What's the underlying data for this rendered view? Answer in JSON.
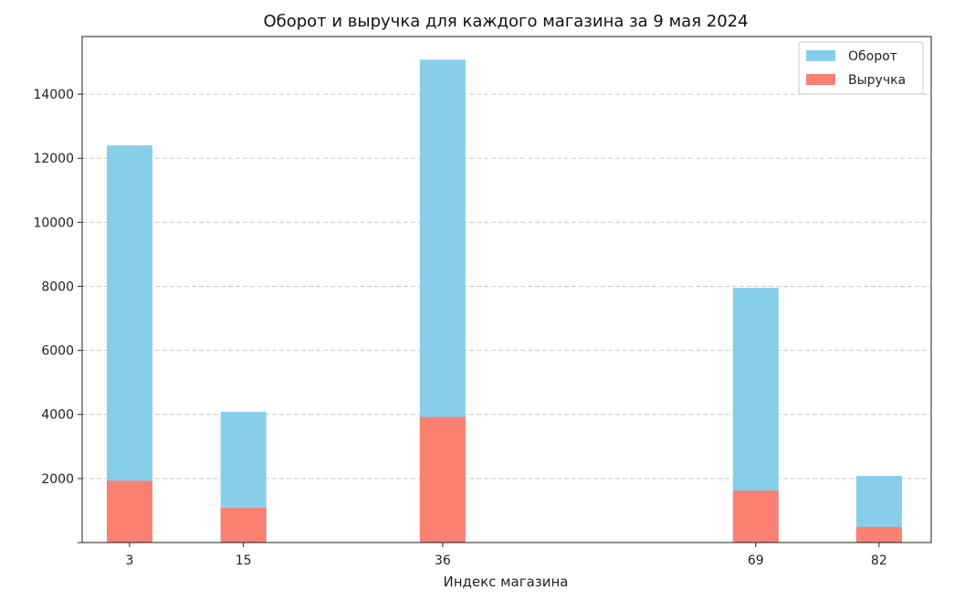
{
  "chart_data": {
    "type": "bar",
    "title": "Оборот и выручка для каждого магазина за 9 мая 2024",
    "xlabel": "Индекс магазина",
    "ylabel": "",
    "x": [
      3,
      15,
      36,
      69,
      82
    ],
    "xlim": [
      -2,
      87.5
    ],
    "ylim": [
      0,
      15800
    ],
    "yticks": [
      2000,
      4000,
      6000,
      8000,
      10000,
      12000,
      14000
    ],
    "grid": "horizontal dashed",
    "legend_position": "top-right",
    "series": [
      {
        "name": "Оборот",
        "color": "#87CEEB",
        "values": [
          12400,
          4080,
          15080,
          7950,
          2080
        ]
      },
      {
        "name": "Выручка",
        "color": "#FA8072",
        "values": [
          1930,
          1080,
          3920,
          1620,
          490
        ]
      }
    ]
  }
}
